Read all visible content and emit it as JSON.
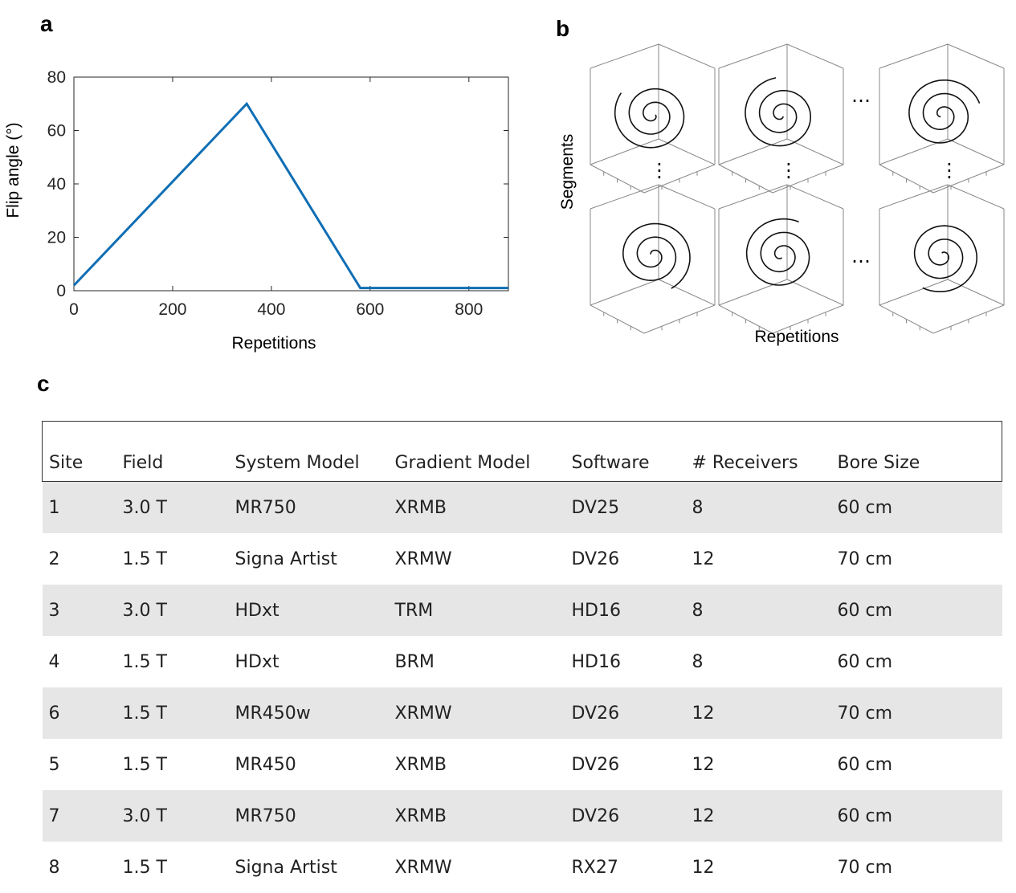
{
  "panels": {
    "a": "a",
    "b": "b",
    "c": "c"
  },
  "chart_data": {
    "type": "line",
    "title": "",
    "xlabel": "Repetitions",
    "ylabel": "Flip angle (°)",
    "xlim": [
      0,
      880
    ],
    "ylim": [
      0,
      80
    ],
    "xticks": [
      0,
      200,
      400,
      600,
      800
    ],
    "yticks": [
      0,
      20,
      40,
      60,
      80
    ],
    "color": "#0f6eb4",
    "series": [
      {
        "name": "flip angle",
        "x": [
          0,
          350,
          580,
          880
        ],
        "y": [
          2,
          70,
          1,
          1
        ]
      }
    ]
  },
  "diagram": {
    "xlabel": "Repetitions",
    "ylabel": "Segments",
    "ellipsis_h": "…",
    "ellipsis_v": "⋮"
  },
  "table": {
    "headers": [
      "Site",
      "Field",
      "System Model",
      "Gradient Model",
      "Software",
      "# Receivers",
      "Bore Size"
    ],
    "rows": [
      [
        "1",
        "3.0 T",
        "MR750",
        "XRMB",
        "DV25",
        "8",
        "60 cm"
      ],
      [
        "2",
        "1.5 T",
        "Signa Artist",
        "XRMW",
        "DV26",
        "12",
        "70 cm"
      ],
      [
        "3",
        "3.0 T",
        "HDxt",
        "TRM",
        "HD16",
        "8",
        "60 cm"
      ],
      [
        "4",
        "1.5 T",
        "HDxt",
        "BRM",
        "HD16",
        "8",
        "60 cm"
      ],
      [
        "6",
        "1.5 T",
        "MR450w",
        "XRMW",
        "DV26",
        "12",
        "70 cm"
      ],
      [
        "5",
        "1.5 T",
        "MR450",
        "XRMB",
        "DV26",
        "12",
        "60 cm"
      ],
      [
        "7",
        "3.0 T",
        "MR750",
        "XRMB",
        "DV26",
        "12",
        "60 cm"
      ],
      [
        "8",
        "1.5 T",
        "Signa Artist",
        "XRMW",
        "RX27",
        "12",
        "70 cm"
      ]
    ]
  }
}
